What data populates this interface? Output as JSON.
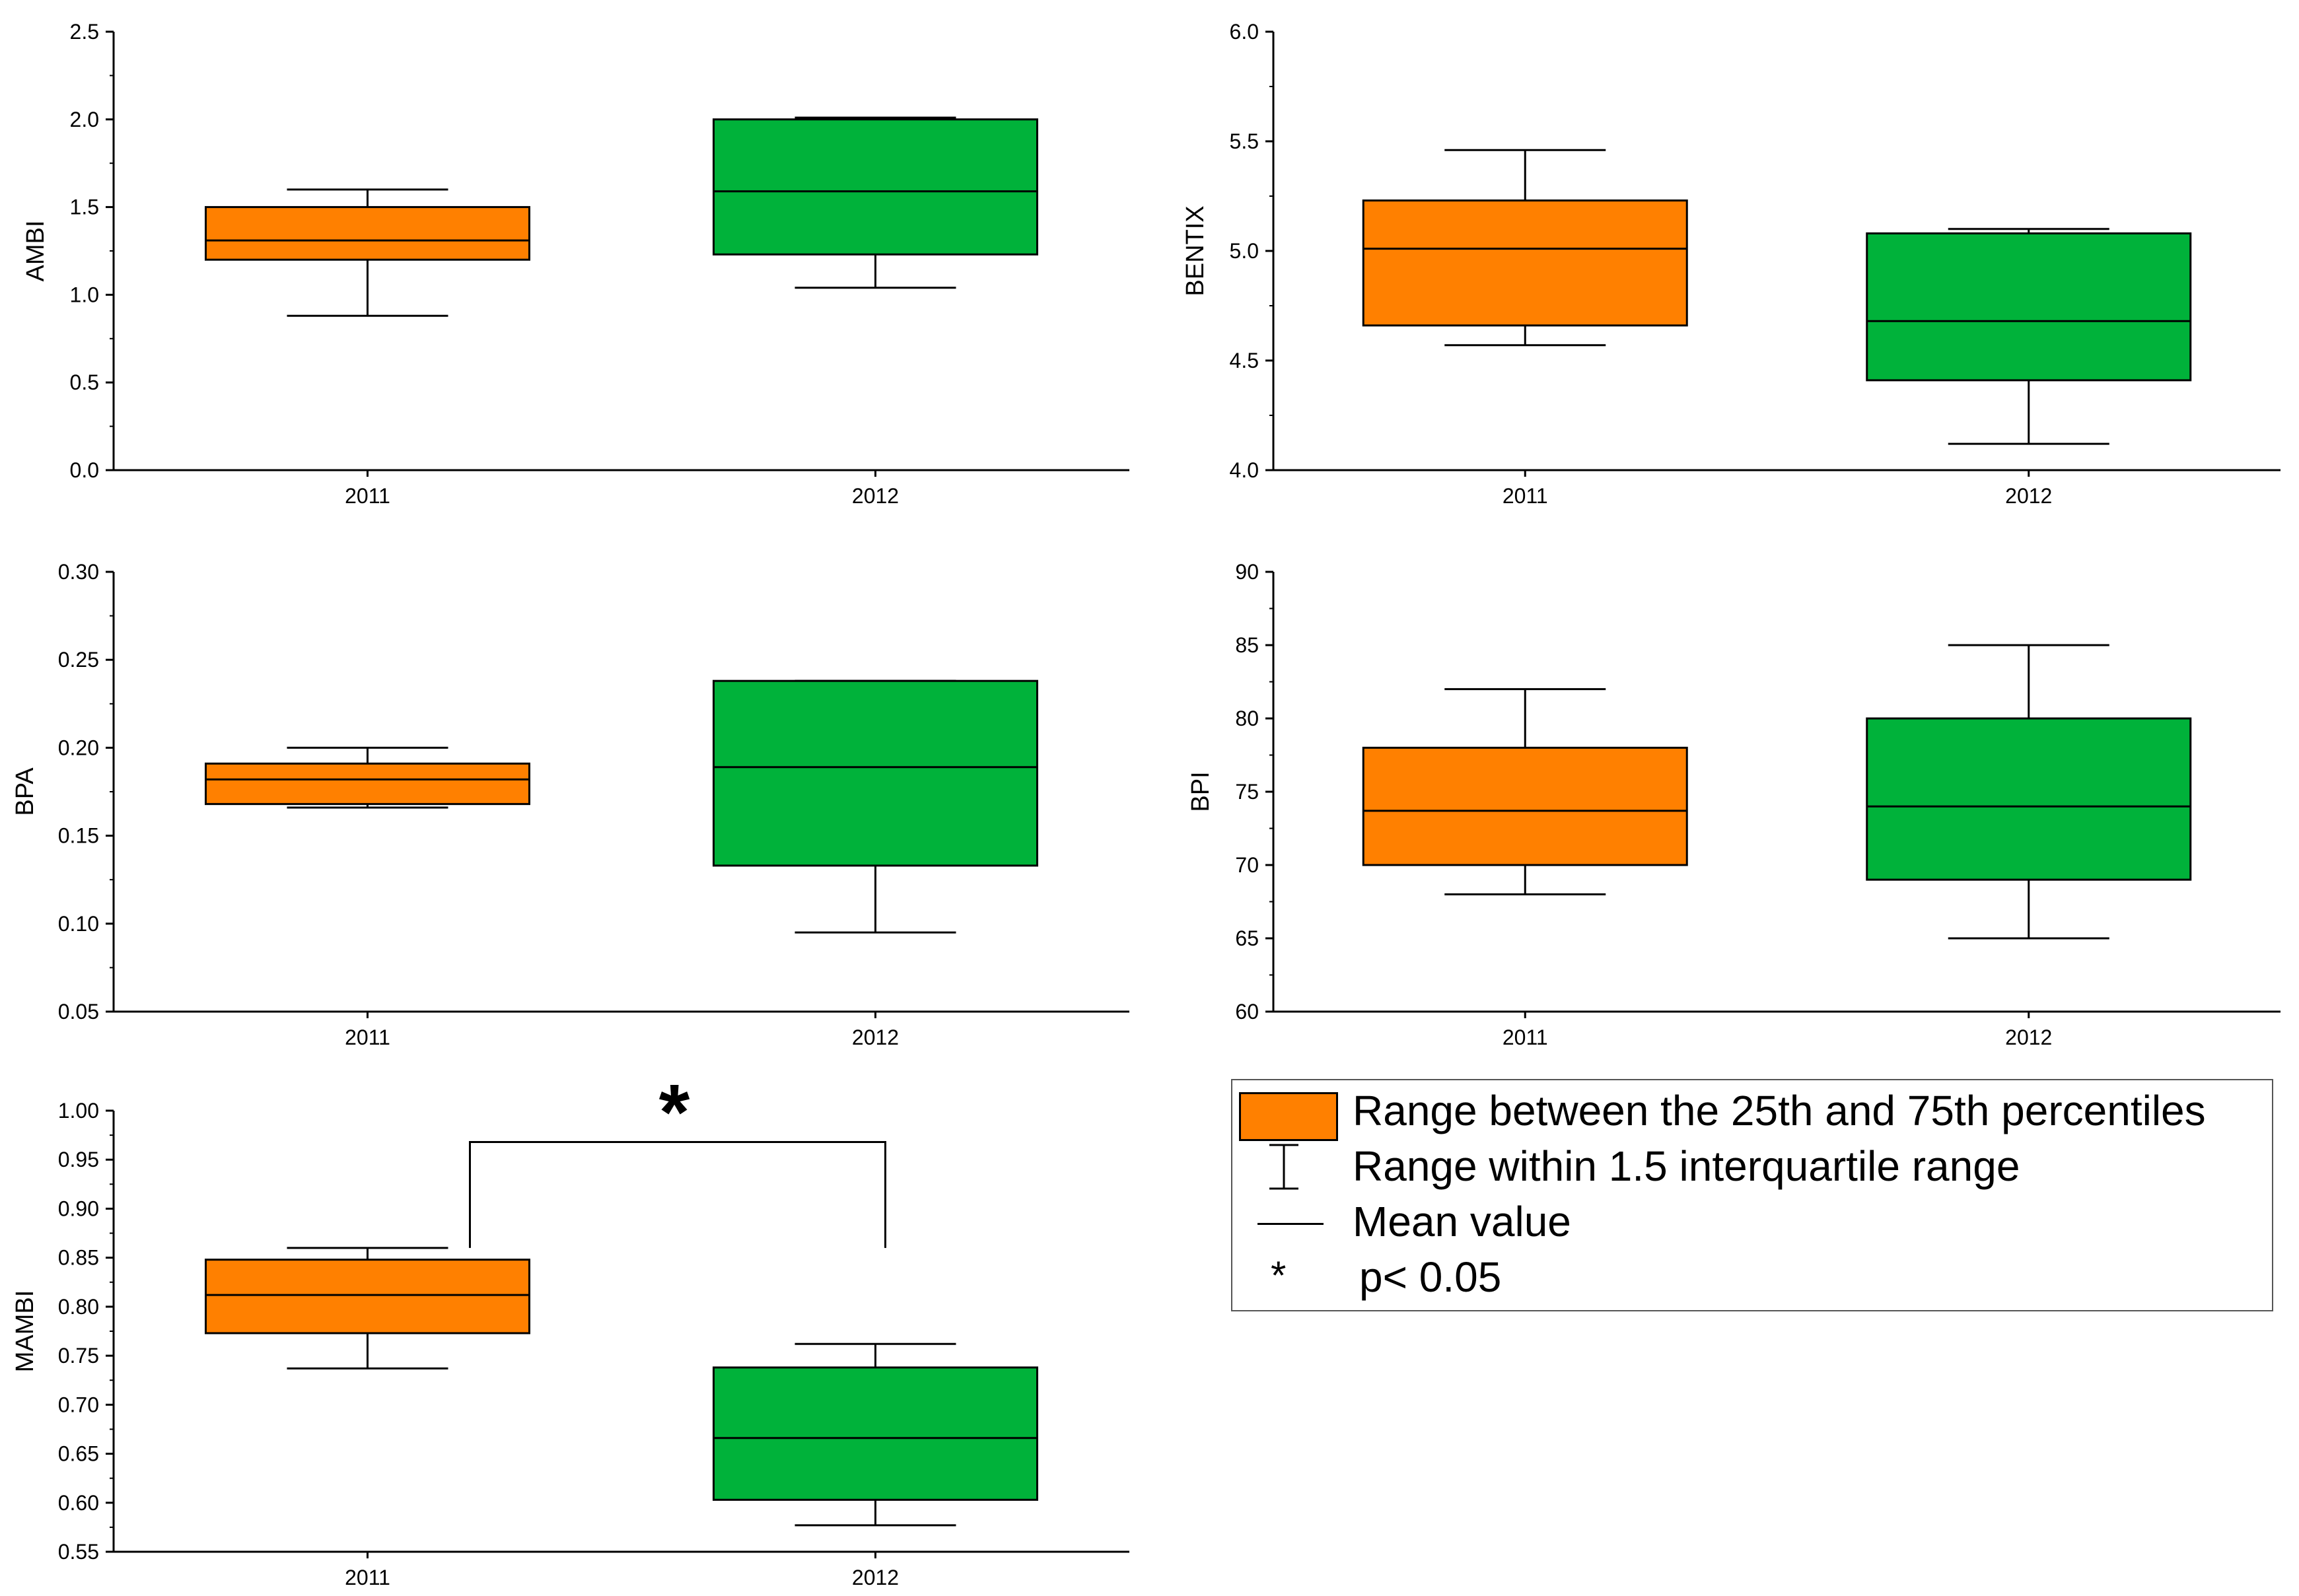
{
  "colors": {
    "y2011": "#ff8000",
    "y2012": "#00b23a"
  },
  "chart_data": [
    {
      "type": "box",
      "ylabel": "AMBI",
      "categories": [
        "2011",
        "2012"
      ],
      "ylim": [
        0.0,
        2.5
      ],
      "yticks": [
        "0.0",
        "0.5",
        "1.0",
        "1.5",
        "2.0",
        "2.5"
      ],
      "boxes": [
        {
          "whisker_low": 0.88,
          "q1": 1.2,
          "mean": 1.31,
          "q3": 1.5,
          "whisker_high": 1.6
        },
        {
          "whisker_low": 1.04,
          "q1": 1.23,
          "mean": 1.59,
          "q3": 2.0,
          "whisker_high": 2.01
        }
      ]
    },
    {
      "type": "box",
      "ylabel": "BENTIX",
      "categories": [
        "2011",
        "2012"
      ],
      "ylim": [
        4.0,
        6.0
      ],
      "yticks": [
        "4.0",
        "4.5",
        "5.0",
        "5.5",
        "6.0"
      ],
      "boxes": [
        {
          "whisker_low": 4.57,
          "q1": 4.66,
          "mean": 5.01,
          "q3": 5.23,
          "whisker_high": 5.46
        },
        {
          "whisker_low": 4.12,
          "q1": 4.41,
          "mean": 4.68,
          "q3": 5.08,
          "whisker_high": 5.1
        }
      ]
    },
    {
      "type": "box",
      "ylabel": "BPA",
      "categories": [
        "2011",
        "2012"
      ],
      "ylim": [
        0.05,
        0.3
      ],
      "yticks": [
        "0.05",
        "0.10",
        "0.15",
        "0.20",
        "0.25",
        "0.30"
      ],
      "boxes": [
        {
          "whisker_low": 0.166,
          "q1": 0.168,
          "mean": 0.182,
          "q3": 0.191,
          "whisker_high": 0.2
        },
        {
          "whisker_low": 0.095,
          "q1": 0.133,
          "mean": 0.189,
          "q3": 0.238,
          "whisker_high": 0.238
        }
      ]
    },
    {
      "type": "box",
      "ylabel": "BPI",
      "categories": [
        "2011",
        "2012"
      ],
      "ylim": [
        60,
        90
      ],
      "yticks": [
        "60",
        "65",
        "70",
        "75",
        "80",
        "85",
        "90"
      ],
      "boxes": [
        {
          "whisker_low": 68,
          "q1": 70,
          "mean": 73.7,
          "q3": 78,
          "whisker_high": 82
        },
        {
          "whisker_low": 65,
          "q1": 69,
          "mean": 74,
          "q3": 80,
          "whisker_high": 85
        }
      ]
    },
    {
      "type": "box",
      "ylabel": "MAMBI",
      "categories": [
        "2011",
        "2012"
      ],
      "ylim": [
        0.55,
        1.0
      ],
      "yticks": [
        "0.55",
        "0.60",
        "0.65",
        "0.70",
        "0.75",
        "0.80",
        "0.85",
        "0.90",
        "0.95",
        "1.00"
      ],
      "boxes": [
        {
          "whisker_low": 0.737,
          "q1": 0.773,
          "mean": 0.812,
          "q3": 0.848,
          "whisker_high": 0.86
        },
        {
          "whisker_low": 0.577,
          "q1": 0.603,
          "mean": 0.666,
          "q3": 0.738,
          "whisker_high": 0.762
        }
      ],
      "significance": {
        "label": "*",
        "bracket_value": 0.968,
        "left_end": 0.86,
        "right_end": 0.86
      }
    }
  ],
  "legend": {
    "box_label": "Range between the 25th and 75th percentiles",
    "whisker_label": "Range within 1.5 interquartile range",
    "mean_label": "Mean value",
    "star_symbol": "*",
    "star_label": "p< 0.05"
  }
}
